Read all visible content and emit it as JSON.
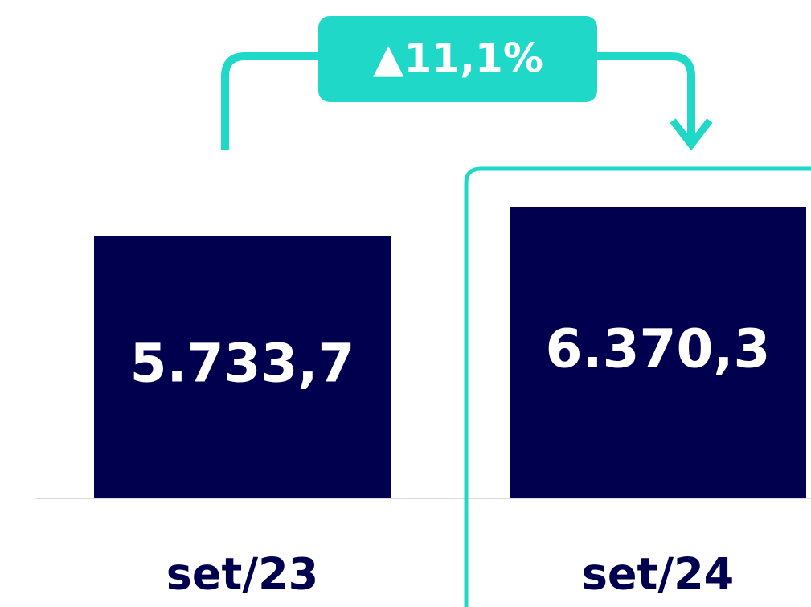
{
  "chart_data": {
    "type": "bar",
    "categories": [
      "set/23",
      "set/24"
    ],
    "values": [
      5733.7,
      6370.3
    ],
    "value_labels": [
      "5.733,7",
      "6.370,3"
    ],
    "color": "#00004f",
    "annotation": "▲11,1%",
    "annotation_color": "#1fd8c8"
  }
}
